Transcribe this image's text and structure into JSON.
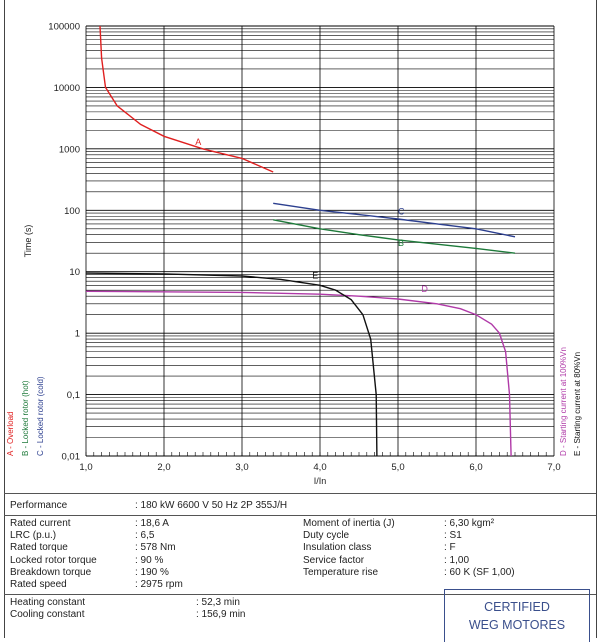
{
  "chart_data": {
    "type": "line",
    "xlabel": "I/In",
    "ylabel": "Time (s)",
    "xlim": [
      1,
      7
    ],
    "ylim": [
      0.01,
      100000
    ],
    "yscale": "log",
    "x_tick_labels": [
      "1,0",
      "2,0",
      "3,0",
      "4,0",
      "5,0",
      "6,0",
      "7,0"
    ],
    "y_tick_labels": [
      "0,01",
      "0,1",
      "1",
      "10",
      "100",
      "1000",
      "10000",
      "100000"
    ],
    "grid": true,
    "series": [
      {
        "name": "A - Overload",
        "label": "A",
        "color": "#e02020",
        "points": [
          [
            1.18,
            100000
          ],
          [
            1.2,
            30000
          ],
          [
            1.25,
            10000
          ],
          [
            1.4,
            5000
          ],
          [
            1.7,
            2500
          ],
          [
            2.0,
            1600
          ],
          [
            2.5,
            1000
          ],
          [
            3.0,
            700
          ],
          [
            3.4,
            420
          ]
        ]
      },
      {
        "name": "B - Locked rotor (hot)",
        "label": "B",
        "color": "#1e7a3a",
        "points": [
          [
            3.4,
            70
          ],
          [
            4.0,
            50
          ],
          [
            4.5,
            40
          ],
          [
            5.0,
            33
          ],
          [
            5.5,
            28
          ],
          [
            6.0,
            24
          ],
          [
            6.5,
            20
          ]
        ]
      },
      {
        "name": "C - Locked rotor (cold)",
        "label": "C",
        "color": "#2c3f8f",
        "points": [
          [
            3.4,
            130
          ],
          [
            4.0,
            100
          ],
          [
            4.5,
            85
          ],
          [
            5.0,
            72
          ],
          [
            5.5,
            60
          ],
          [
            6.0,
            50
          ],
          [
            6.5,
            37
          ]
        ]
      },
      {
        "name": "D - Starting current at 100%Vn",
        "label": "D",
        "color": "#b03aa8",
        "points": [
          [
            1.0,
            4.8
          ],
          [
            3.0,
            4.6
          ],
          [
            4.0,
            4.3
          ],
          [
            4.5,
            4.0
          ],
          [
            5.0,
            3.6
          ],
          [
            5.5,
            3.0
          ],
          [
            5.8,
            2.5
          ],
          [
            6.0,
            2.0
          ],
          [
            6.2,
            1.4
          ],
          [
            6.3,
            1.0
          ],
          [
            6.38,
            0.5
          ],
          [
            6.43,
            0.1
          ],
          [
            6.45,
            0.01
          ]
        ]
      },
      {
        "name": "E - Starting current at 80%Vn",
        "label": "E",
        "color": "#111111",
        "points": [
          [
            1.0,
            9.5
          ],
          [
            2.0,
            9.2
          ],
          [
            3.0,
            8.5
          ],
          [
            3.5,
            7.5
          ],
          [
            4.0,
            6.0
          ],
          [
            4.2,
            5.0
          ],
          [
            4.4,
            3.5
          ],
          [
            4.55,
            2.0
          ],
          [
            4.65,
            0.8
          ],
          [
            4.72,
            0.1
          ],
          [
            4.73,
            0.01
          ]
        ]
      }
    ]
  },
  "performance": {
    "label": "Performance",
    "value": ": 180 kW 6600 V 50 Hz 2P 355J/H"
  },
  "specs_left": [
    {
      "label": "Rated current",
      "value": ": 18,6 A"
    },
    {
      "label": "LRC (p.u.)",
      "value": ": 6,5"
    },
    {
      "label": "Rated torque",
      "value": ": 578 Nm"
    },
    {
      "label": "Locked rotor torque",
      "value": ": 90 %"
    },
    {
      "label": "Breakdown torque",
      "value": ": 190 %"
    },
    {
      "label": "Rated speed",
      "value": ": 2975 rpm"
    }
  ],
  "specs_right": [
    {
      "label": "Moment of inertia (J)",
      "value": ": 6,30 kgm²"
    },
    {
      "label": "Duty cycle",
      "value": ": S1"
    },
    {
      "label": "Insulation class",
      "value": ": F"
    },
    {
      "label": "Service factor",
      "value": ": 1,00"
    },
    {
      "label": "Temperature rise",
      "value": ": 60 K (SF 1,00)"
    }
  ],
  "constants": [
    {
      "label": "Heating constant",
      "value": ": 52,3 min"
    },
    {
      "label": "Cooling constant",
      "value": ": 156,9 min"
    }
  ],
  "certification": {
    "line1": "CERTIFIED",
    "line2": "WEG MOTORES"
  }
}
